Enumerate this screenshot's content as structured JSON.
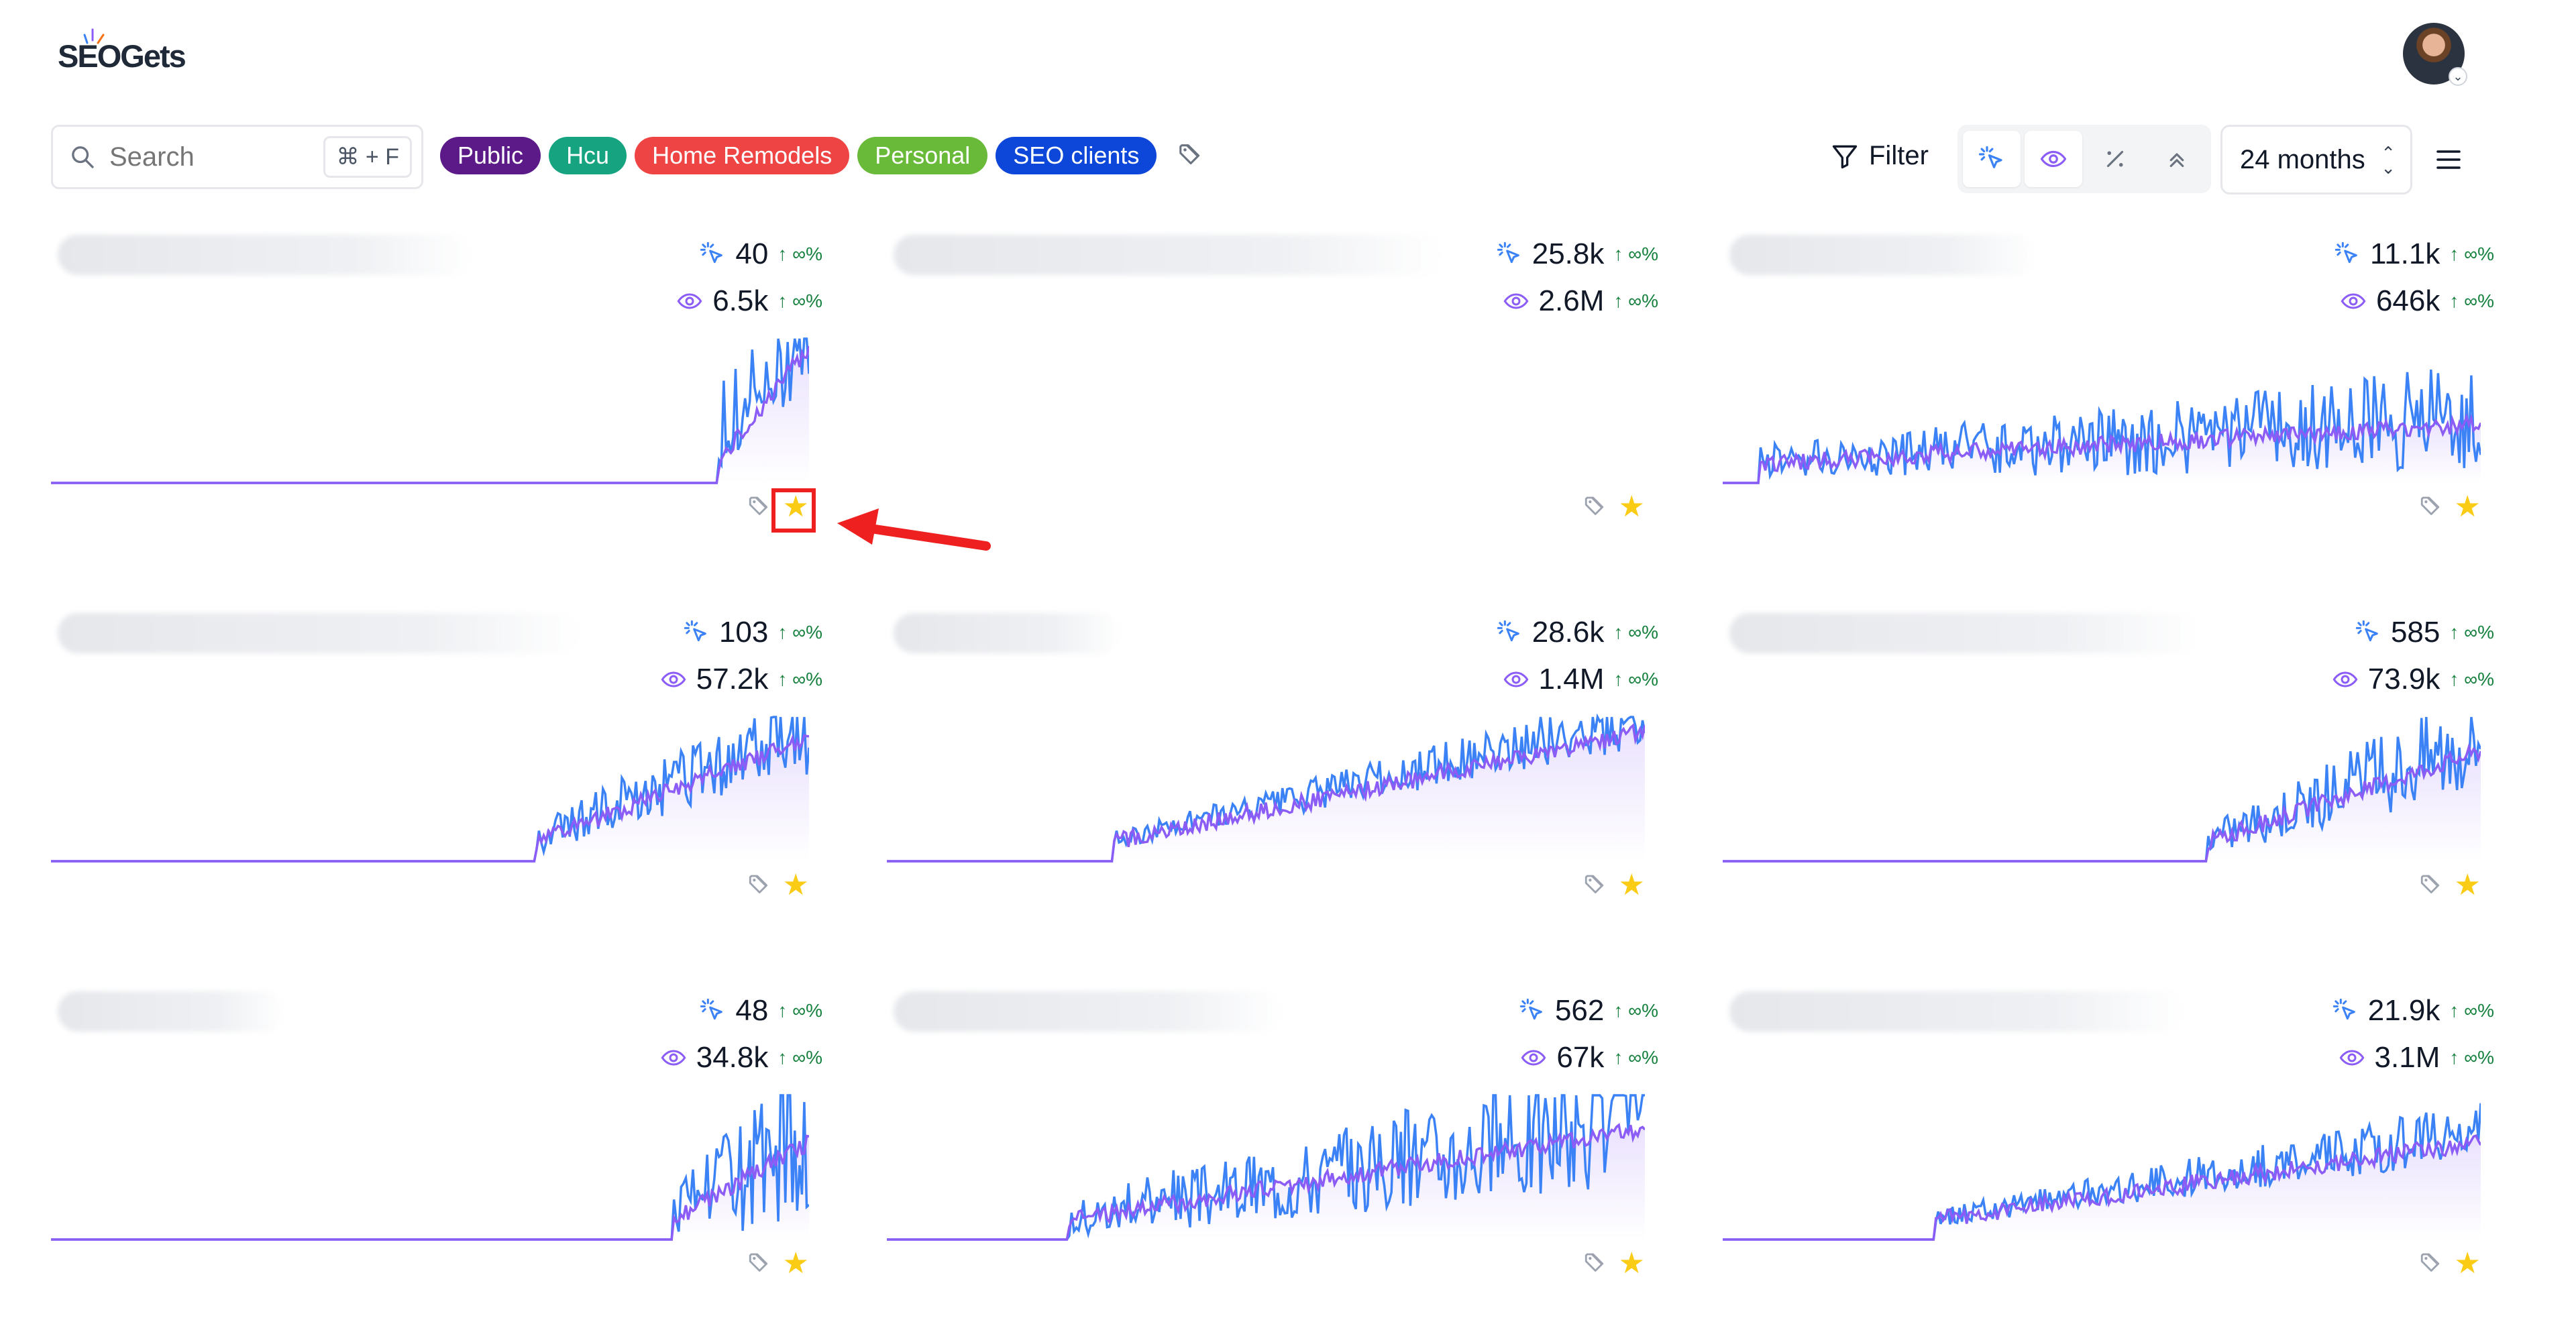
{
  "app": {
    "logo_text": "SEOGets"
  },
  "toolbar": {
    "search_placeholder": "Search",
    "search_shortcut": "⌘ + F",
    "tags": [
      {
        "label": "Public",
        "color": "#5b1a88"
      },
      {
        "label": "Hcu",
        "color": "#16a37f"
      },
      {
        "label": "Home Remodels",
        "color": "#ef4444"
      },
      {
        "label": "Personal",
        "color": "#6aba3a"
      },
      {
        "label": "SEO clients",
        "color": "#0d47d9"
      }
    ],
    "filter_label": "Filter",
    "metric_buttons": [
      "clicks-icon",
      "eye-icon",
      "percent-icon",
      "position-icon"
    ],
    "period_label": "24 months"
  },
  "colors": {
    "clicks": "#3b82f6",
    "impressions": "#8b5cf6",
    "positive": "#15803d",
    "star": "#facc15",
    "highlight": "#ef2020"
  },
  "cards": [
    {
      "clicks": "40",
      "impressions": "6.5k",
      "change_clicks": "↑ ∞%",
      "change_impressions": "↑ ∞%",
      "starred": true
    },
    {
      "clicks": "25.8k",
      "impressions": "2.6M",
      "change_clicks": "↑ ∞%",
      "change_impressions": "↑ ∞%",
      "starred": true
    },
    {
      "clicks": "11.1k",
      "impressions": "646k",
      "change_clicks": "↑ ∞%",
      "change_impressions": "↑ ∞%",
      "starred": true
    },
    {
      "clicks": "103",
      "impressions": "57.2k",
      "change_clicks": "↑ ∞%",
      "change_impressions": "↑ ∞%",
      "starred": true
    },
    {
      "clicks": "28.6k",
      "impressions": "1.4M",
      "change_clicks": "↑ ∞%",
      "change_impressions": "↑ ∞%",
      "starred": true
    },
    {
      "clicks": "585",
      "impressions": "73.9k",
      "change_clicks": "↑ ∞%",
      "change_impressions": "↑ ∞%",
      "starred": true
    },
    {
      "clicks": "48",
      "impressions": "34.8k",
      "change_clicks": "↑ ∞%",
      "change_impressions": "↑ ∞%",
      "starred": true
    },
    {
      "clicks": "562",
      "impressions": "67k",
      "change_clicks": "↑ ∞%",
      "change_impressions": "↑ ∞%",
      "starred": true
    },
    {
      "clicks": "21.9k",
      "impressions": "3.1M",
      "change_clicks": "↑ ∞%",
      "change_impressions": "↑ ∞%",
      "starred": true
    }
  ]
}
